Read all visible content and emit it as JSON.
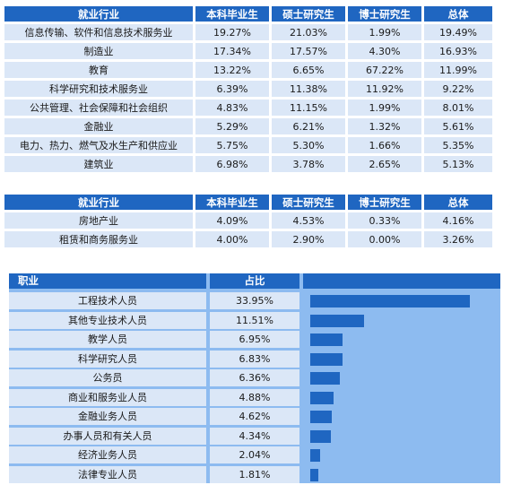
{
  "table1": {
    "headers": [
      "就业行业",
      "本科毕业生",
      "硕士研究生",
      "博士研究生",
      "总体"
    ],
    "rows": [
      [
        "信息传输、软件和信息技术服务业",
        "19.27%",
        "21.03%",
        "1.99%",
        "19.49%"
      ],
      [
        "制造业",
        "17.34%",
        "17.57%",
        "4.30%",
        "16.93%"
      ],
      [
        "教育",
        "13.22%",
        "6.65%",
        "67.22%",
        "11.99%"
      ],
      [
        "科学研究和技术服务业",
        "6.39%",
        "11.38%",
        "11.92%",
        "9.22%"
      ],
      [
        "公共管理、社会保障和社会组织",
        "4.83%",
        "11.15%",
        "1.99%",
        "8.01%"
      ],
      [
        "金融业",
        "5.29%",
        "6.21%",
        "1.32%",
        "5.61%"
      ],
      [
        "电力、热力、燃气及水生产和供应业",
        "5.75%",
        "5.30%",
        "1.66%",
        "5.35%"
      ],
      [
        "建筑业",
        "6.98%",
        "3.78%",
        "2.65%",
        "5.13%"
      ]
    ]
  },
  "table2": {
    "headers": [
      "就业行业",
      "本科毕业生",
      "硕士研究生",
      "博士研究生",
      "总体"
    ],
    "rows": [
      [
        "房地产业",
        "4.09%",
        "4.53%",
        "0.33%",
        "4.16%"
      ],
      [
        "租赁和商务服务业",
        "4.00%",
        "2.90%",
        "0.00%",
        "3.26%"
      ]
    ]
  },
  "occupation": {
    "headers": [
      "职业",
      "占比",
      ""
    ],
    "rows": [
      {
        "role": "工程技术人员",
        "share": "33.95%",
        "value": 33.95
      },
      {
        "role": "其他专业技术人员",
        "share": "11.51%",
        "value": 11.51
      },
      {
        "role": "教学人员",
        "share": "6.95%",
        "value": 6.95
      },
      {
        "role": "科学研究人员",
        "share": "6.83%",
        "value": 6.83
      },
      {
        "role": "公务员",
        "share": "6.36%",
        "value": 6.36
      },
      {
        "role": "商业和服务业人员",
        "share": "4.88%",
        "value": 4.88
      },
      {
        "role": "金融业务人员",
        "share": "4.62%",
        "value": 4.62
      },
      {
        "role": "办事人员和有关人员",
        "share": "4.34%",
        "value": 4.34
      },
      {
        "role": "经济业务人员",
        "share": "2.04%",
        "value": 2.04
      },
      {
        "role": "法律专业人员",
        "share": "1.81%",
        "value": 1.81
      }
    ],
    "bar_color": "#1f66c1",
    "max_value": 33.95
  }
}
